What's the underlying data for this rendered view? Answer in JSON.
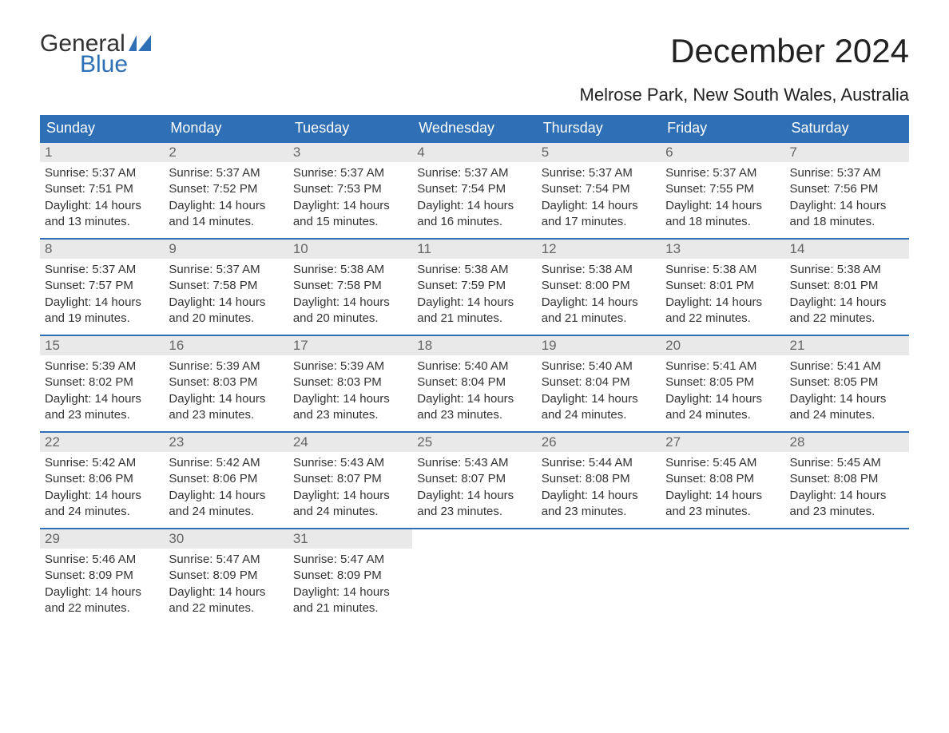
{
  "logo": {
    "top": "General",
    "bottom": "Blue"
  },
  "title": "December 2024",
  "location": "Melrose Park, New South Wales, Australia",
  "colors": {
    "header_bg": "#2e6fb5",
    "header_text": "#ffffff",
    "daynum_bg": "#e9e9e9",
    "daynum_text": "#666666",
    "body_text": "#333333",
    "logo_blue": "#2e6fb5"
  },
  "weekdays": [
    "Sunday",
    "Monday",
    "Tuesday",
    "Wednesday",
    "Thursday",
    "Friday",
    "Saturday"
  ],
  "weeks": [
    [
      {
        "n": "1",
        "sr": "5:37 AM",
        "ss": "7:51 PM",
        "dh": "14",
        "dm": "13"
      },
      {
        "n": "2",
        "sr": "5:37 AM",
        "ss": "7:52 PM",
        "dh": "14",
        "dm": "14"
      },
      {
        "n": "3",
        "sr": "5:37 AM",
        "ss": "7:53 PM",
        "dh": "14",
        "dm": "15"
      },
      {
        "n": "4",
        "sr": "5:37 AM",
        "ss": "7:54 PM",
        "dh": "14",
        "dm": "16"
      },
      {
        "n": "5",
        "sr": "5:37 AM",
        "ss": "7:54 PM",
        "dh": "14",
        "dm": "17"
      },
      {
        "n": "6",
        "sr": "5:37 AM",
        "ss": "7:55 PM",
        "dh": "14",
        "dm": "18"
      },
      {
        "n": "7",
        "sr": "5:37 AM",
        "ss": "7:56 PM",
        "dh": "14",
        "dm": "18"
      }
    ],
    [
      {
        "n": "8",
        "sr": "5:37 AM",
        "ss": "7:57 PM",
        "dh": "14",
        "dm": "19"
      },
      {
        "n": "9",
        "sr": "5:37 AM",
        "ss": "7:58 PM",
        "dh": "14",
        "dm": "20"
      },
      {
        "n": "10",
        "sr": "5:38 AM",
        "ss": "7:58 PM",
        "dh": "14",
        "dm": "20"
      },
      {
        "n": "11",
        "sr": "5:38 AM",
        "ss": "7:59 PM",
        "dh": "14",
        "dm": "21"
      },
      {
        "n": "12",
        "sr": "5:38 AM",
        "ss": "8:00 PM",
        "dh": "14",
        "dm": "21"
      },
      {
        "n": "13",
        "sr": "5:38 AM",
        "ss": "8:01 PM",
        "dh": "14",
        "dm": "22"
      },
      {
        "n": "14",
        "sr": "5:38 AM",
        "ss": "8:01 PM",
        "dh": "14",
        "dm": "22"
      }
    ],
    [
      {
        "n": "15",
        "sr": "5:39 AM",
        "ss": "8:02 PM",
        "dh": "14",
        "dm": "23"
      },
      {
        "n": "16",
        "sr": "5:39 AM",
        "ss": "8:03 PM",
        "dh": "14",
        "dm": "23"
      },
      {
        "n": "17",
        "sr": "5:39 AM",
        "ss": "8:03 PM",
        "dh": "14",
        "dm": "23"
      },
      {
        "n": "18",
        "sr": "5:40 AM",
        "ss": "8:04 PM",
        "dh": "14",
        "dm": "23"
      },
      {
        "n": "19",
        "sr": "5:40 AM",
        "ss": "8:04 PM",
        "dh": "14",
        "dm": "24"
      },
      {
        "n": "20",
        "sr": "5:41 AM",
        "ss": "8:05 PM",
        "dh": "14",
        "dm": "24"
      },
      {
        "n": "21",
        "sr": "5:41 AM",
        "ss": "8:05 PM",
        "dh": "14",
        "dm": "24"
      }
    ],
    [
      {
        "n": "22",
        "sr": "5:42 AM",
        "ss": "8:06 PM",
        "dh": "14",
        "dm": "24"
      },
      {
        "n": "23",
        "sr": "5:42 AM",
        "ss": "8:06 PM",
        "dh": "14",
        "dm": "24"
      },
      {
        "n": "24",
        "sr": "5:43 AM",
        "ss": "8:07 PM",
        "dh": "14",
        "dm": "24"
      },
      {
        "n": "25",
        "sr": "5:43 AM",
        "ss": "8:07 PM",
        "dh": "14",
        "dm": "23"
      },
      {
        "n": "26",
        "sr": "5:44 AM",
        "ss": "8:08 PM",
        "dh": "14",
        "dm": "23"
      },
      {
        "n": "27",
        "sr": "5:45 AM",
        "ss": "8:08 PM",
        "dh": "14",
        "dm": "23"
      },
      {
        "n": "28",
        "sr": "5:45 AM",
        "ss": "8:08 PM",
        "dh": "14",
        "dm": "23"
      }
    ],
    [
      {
        "n": "29",
        "sr": "5:46 AM",
        "ss": "8:09 PM",
        "dh": "14",
        "dm": "22"
      },
      {
        "n": "30",
        "sr": "5:47 AM",
        "ss": "8:09 PM",
        "dh": "14",
        "dm": "22"
      },
      {
        "n": "31",
        "sr": "5:47 AM",
        "ss": "8:09 PM",
        "dh": "14",
        "dm": "21"
      },
      null,
      null,
      null,
      null
    ]
  ],
  "labels": {
    "sunrise": "Sunrise:",
    "sunset": "Sunset:",
    "daylight": "Daylight:",
    "hours": "hours",
    "and": "and",
    "minutes": "minutes."
  }
}
